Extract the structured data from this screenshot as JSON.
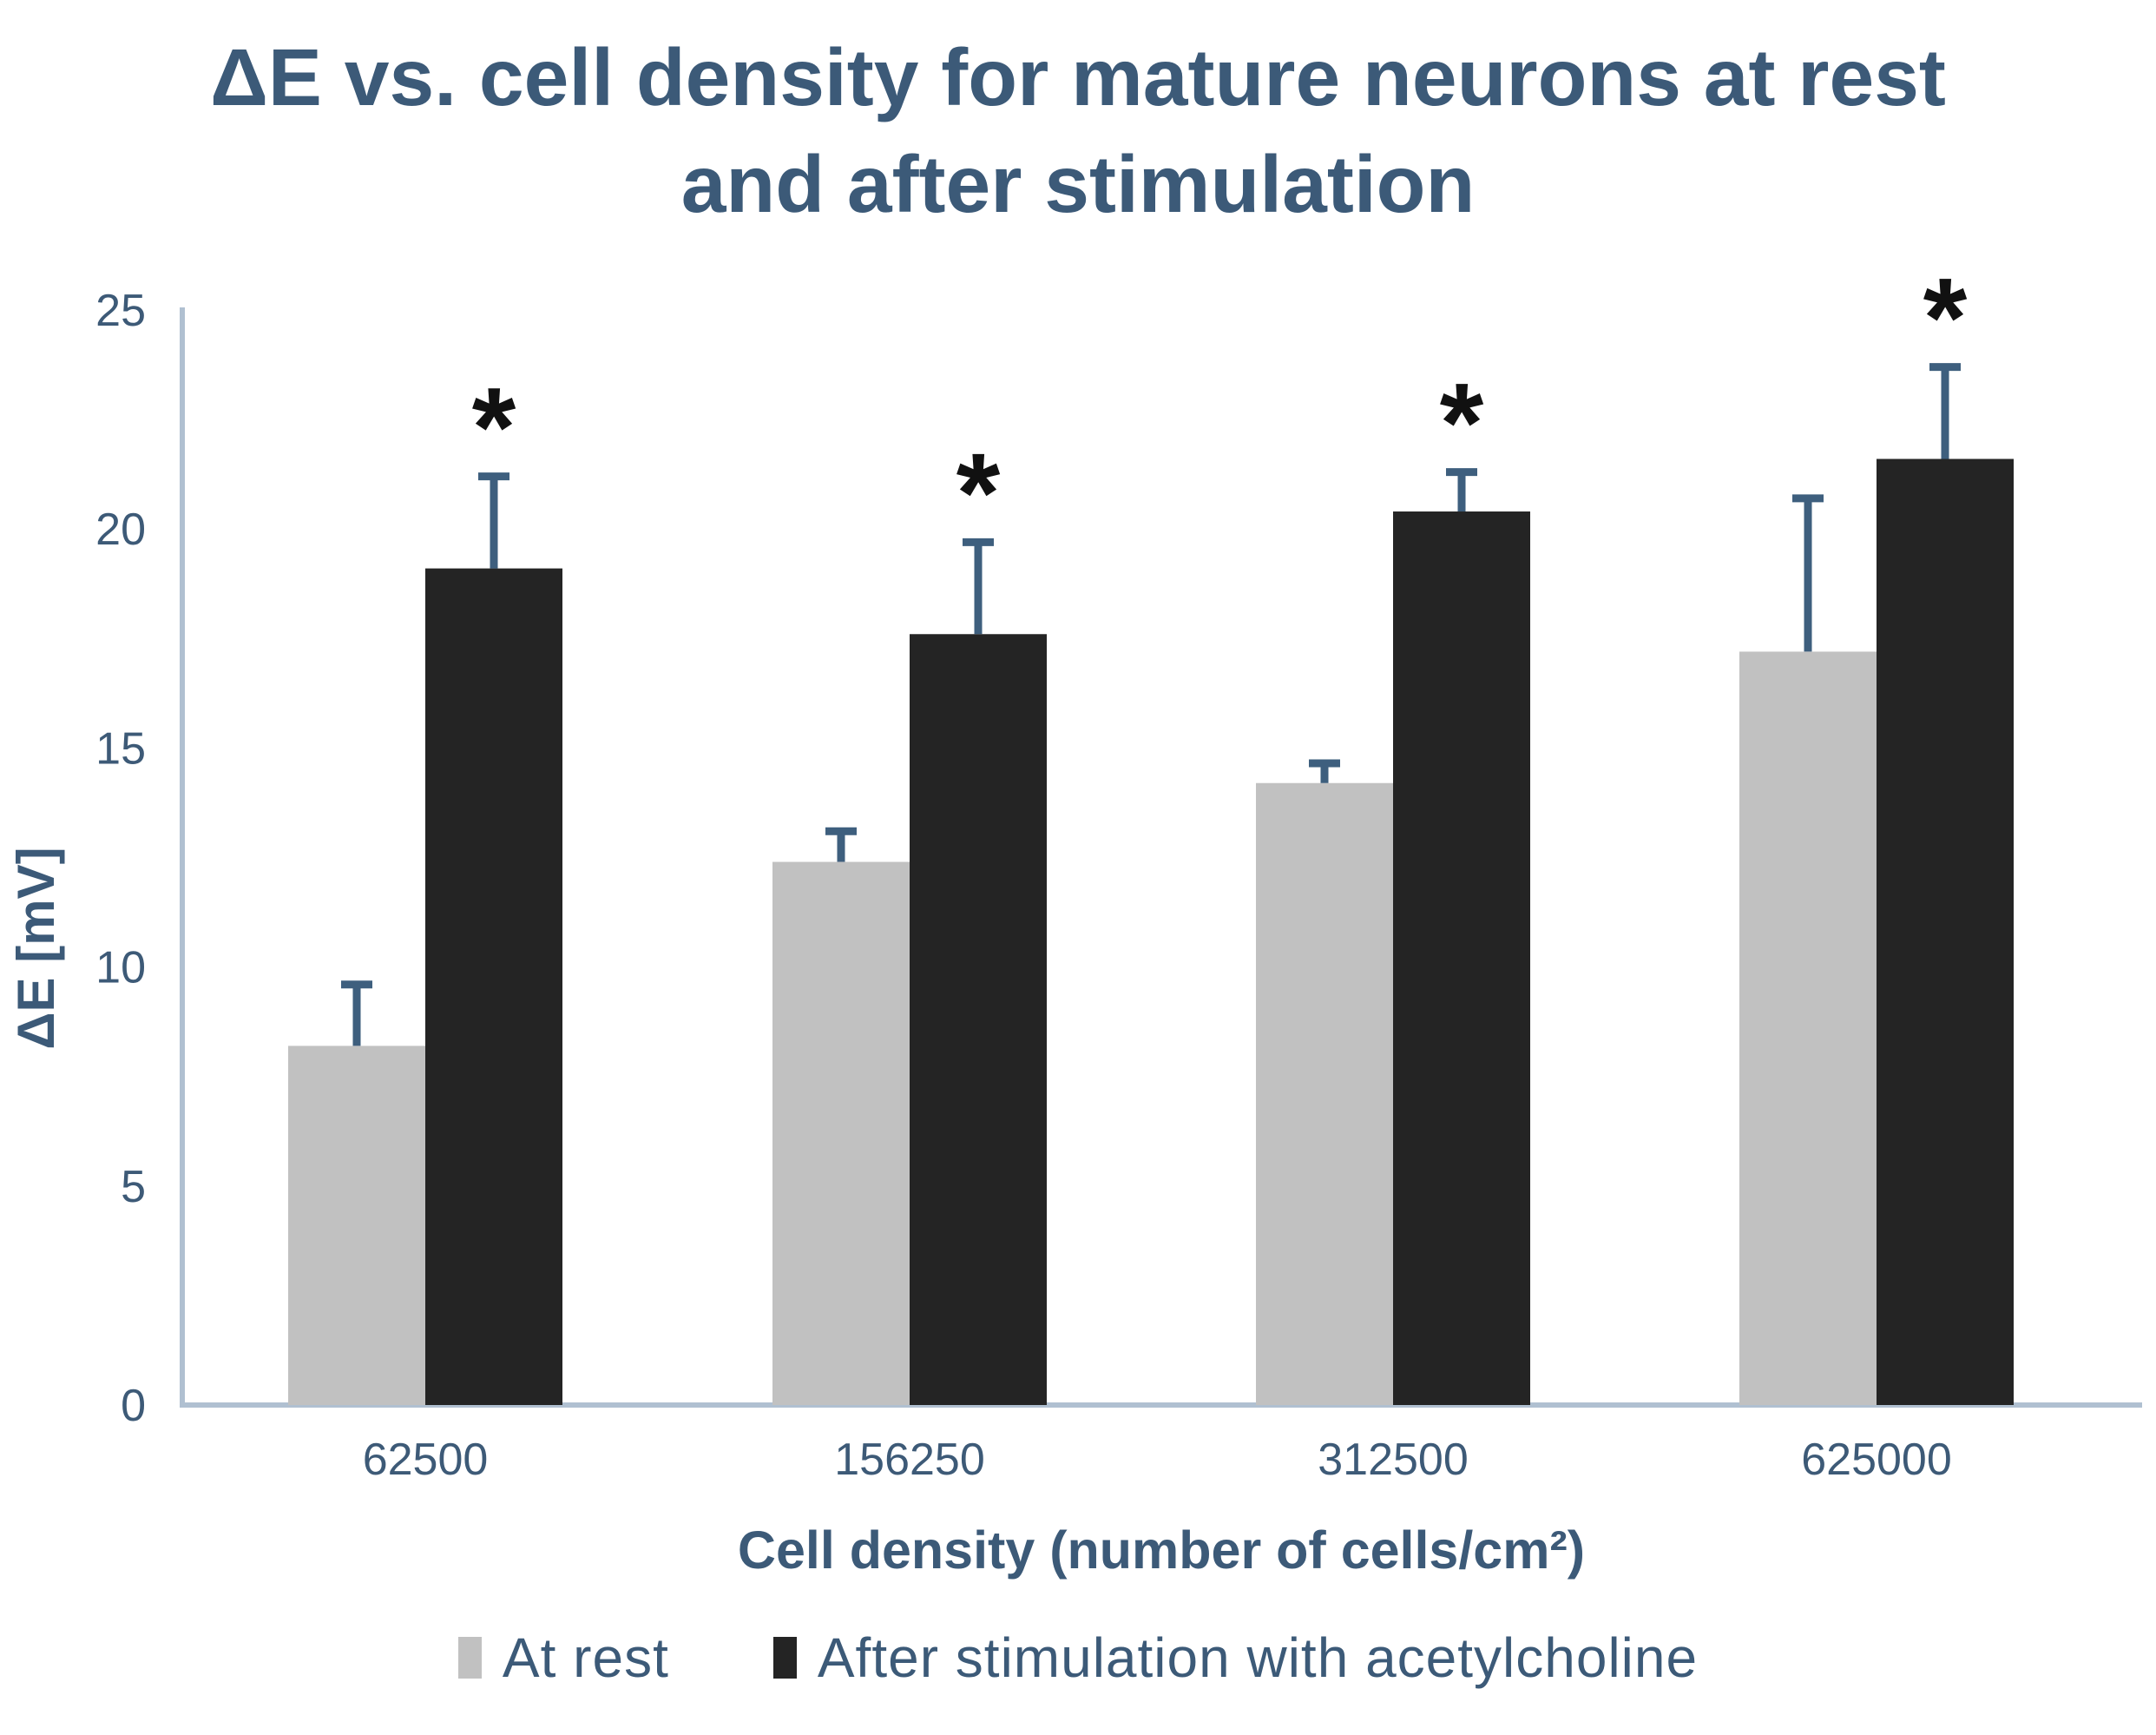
{
  "chart_data": {
    "type": "bar",
    "title": "ΔE vs. cell density for mature neurons at rest and after stimulation",
    "xlabel": "Cell density (number of cells/cm²)",
    "ylabel": "ΔE [mV]",
    "categories": [
      "62500",
      "156250",
      "312500",
      "625000"
    ],
    "series": [
      {
        "name": "At rest",
        "color": "#c1c1c1",
        "values": [
          8.2,
          12.4,
          14.2,
          17.2
        ],
        "errors_plus": [
          1.4,
          0.7,
          0.45,
          3.5
        ],
        "significance": [
          "",
          "",
          "",
          ""
        ]
      },
      {
        "name": "After stimulation with acetylcholine",
        "color": "#242424",
        "values": [
          19.1,
          17.6,
          20.4,
          21.6
        ],
        "errors_plus": [
          2.1,
          2.1,
          0.9,
          2.1
        ],
        "significance": [
          "*",
          "*",
          "*",
          "*"
        ]
      }
    ],
    "ylim": [
      0,
      25
    ],
    "ytick_step": 5,
    "yticks": [
      "0",
      "5",
      "10",
      "15",
      "20",
      "25"
    ],
    "grid": false,
    "legend_position": "bottom",
    "significance_marker": "*",
    "colors": {
      "text": "#3c5a78",
      "tick_text": "#3d5a77",
      "axis_line": "#b0c0d1",
      "error_bar": "#3e5f7e",
      "significance": "#111111"
    }
  }
}
